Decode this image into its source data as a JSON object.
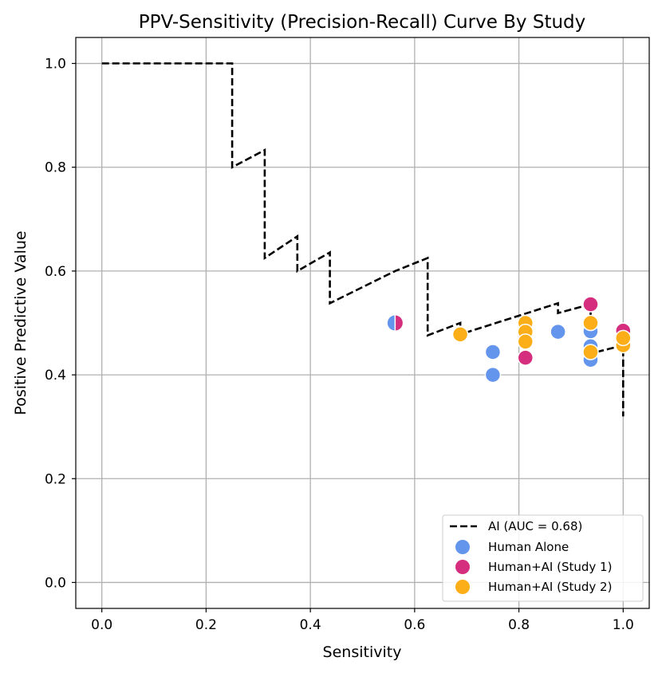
{
  "chart_data": {
    "type": "scatter",
    "title": "PPV-Sensitivity (Precision-Recall) Curve By Study",
    "xlabel": "Sensitivity",
    "ylabel": "Positive Predictive Value",
    "xlim": [
      -0.05,
      1.05
    ],
    "ylim": [
      -0.05,
      1.05
    ],
    "xticks": [
      0.0,
      0.2,
      0.4,
      0.6,
      0.8,
      1.0
    ],
    "yticks": [
      0.0,
      0.2,
      0.4,
      0.6,
      0.8,
      1.0
    ],
    "xtick_labels": [
      "0.0",
      "0.2",
      "0.4",
      "0.6",
      "0.8",
      "1.0"
    ],
    "ytick_labels": [
      "0.0",
      "0.2",
      "0.4",
      "0.6",
      "0.8",
      "1.0"
    ],
    "grid": true,
    "legend_position": "lower-right",
    "ai_curve": {
      "name": "AI (AUC = 0.68)",
      "color": "#000000",
      "points": [
        [
          0.0,
          1.0
        ],
        [
          0.25,
          1.0
        ],
        [
          0.25,
          0.8
        ],
        [
          0.3125,
          0.833
        ],
        [
          0.3125,
          0.625
        ],
        [
          0.375,
          0.667
        ],
        [
          0.375,
          0.6
        ],
        [
          0.4375,
          0.636
        ],
        [
          0.4375,
          0.538
        ],
        [
          0.5625,
          0.6
        ],
        [
          0.625,
          0.625
        ],
        [
          0.625,
          0.476
        ],
        [
          0.6875,
          0.5
        ],
        [
          0.6875,
          0.478
        ],
        [
          0.875,
          0.538
        ],
        [
          0.875,
          0.519
        ],
        [
          0.9375,
          0.536
        ],
        [
          0.9375,
          0.441
        ],
        [
          1.0,
          0.457
        ],
        [
          1.0,
          0.32
        ]
      ]
    },
    "series": [
      {
        "name": "Human Alone",
        "color": "#6495ED",
        "points": [
          [
            0.5625,
            0.5
          ],
          [
            0.75,
            0.444
          ],
          [
            0.75,
            0.4
          ],
          [
            0.875,
            0.483
          ],
          [
            0.9375,
            0.484
          ],
          [
            0.9375,
            0.455
          ],
          [
            0.9375,
            0.429
          ],
          [
            0.8125,
            0.464
          ]
        ]
      },
      {
        "name": "Human+AI (Study 1)",
        "color": "#D62E7E",
        "points": [
          [
            0.5625,
            0.5
          ],
          [
            0.8125,
            0.464
          ],
          [
            0.8125,
            0.433
          ],
          [
            0.9375,
            0.536
          ],
          [
            1.0,
            0.485
          ]
        ]
      },
      {
        "name": "Human+AI (Study 2)",
        "color": "#FBAE17",
        "points": [
          [
            0.6875,
            0.478
          ],
          [
            0.8125,
            0.5
          ],
          [
            0.8125,
            0.483
          ],
          [
            0.8125,
            0.464
          ],
          [
            0.9375,
            0.5
          ],
          [
            0.9375,
            0.444
          ],
          [
            1.0,
            0.457
          ],
          [
            1.0,
            0.471
          ]
        ]
      }
    ],
    "half_markers": [
      {
        "x": 0.5625,
        "y": 0.5,
        "left_color": "#6495ED",
        "right_color": "#D62E7E"
      }
    ]
  }
}
